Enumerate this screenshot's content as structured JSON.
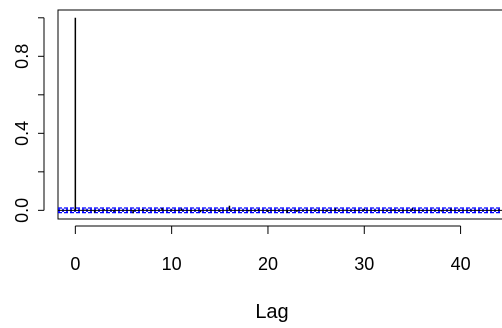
{
  "chart_data": {
    "type": "bar",
    "xlabel": "Lag",
    "ylabel": "",
    "xlim": [
      -1.8,
      44.3
    ],
    "ylim": [
      -0.045,
      1.0405
    ],
    "x_ticks": [
      {
        "value": 0,
        "label": "0"
      },
      {
        "value": 10,
        "label": "10"
      },
      {
        "value": 20,
        "label": "20"
      },
      {
        "value": 30,
        "label": "30"
      },
      {
        "value": 40,
        "label": "40"
      }
    ],
    "y_ticks": [
      {
        "value": 0.0,
        "label": "0.0"
      },
      {
        "value": 0.4,
        "label": "0.4"
      },
      {
        "value": 0.8,
        "label": "0.8"
      }
    ],
    "lags": [
      0,
      1,
      2,
      3,
      4,
      5,
      6,
      7,
      8,
      9,
      10,
      11,
      12,
      13,
      14,
      15,
      16,
      17,
      18,
      19,
      20,
      21,
      22,
      23,
      24,
      25,
      26,
      27,
      28,
      29,
      30,
      31,
      32,
      33,
      34,
      35,
      36,
      37,
      38,
      39,
      40,
      41,
      42,
      43,
      44
    ],
    "acf": [
      1.0,
      0.004,
      -0.012,
      0.006,
      -0.008,
      0.003,
      -0.015,
      0.007,
      -0.004,
      0.012,
      0.005,
      0.009,
      -0.006,
      -0.01,
      0.004,
      -0.007,
      0.024,
      0.003,
      -0.005,
      0.006,
      -0.009,
      0.002,
      -0.013,
      -0.008,
      0.004,
      0.005,
      -0.006,
      0.01,
      0.003,
      -0.004,
      0.008,
      -0.003,
      0.002,
      0.006,
      -0.005,
      0.011,
      -0.004,
      0.003,
      -0.006,
      0.009,
      -0.002,
      0.004,
      -0.003,
      0.002,
      0.005
    ],
    "confidence_band": 0.012,
    "colors": {
      "bars": "#000000",
      "confidence_lines": "#0000ff",
      "zero_line": "#000000"
    }
  }
}
